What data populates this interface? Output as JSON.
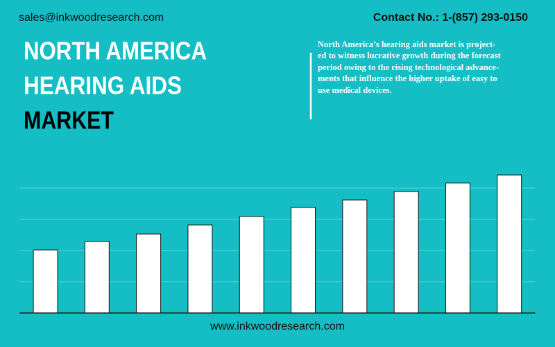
{
  "header": {
    "email": "sales@inkwoodresearch.com",
    "contact": "Contact No.: 1-(857) 293-0150"
  },
  "title_lines": [
    "NORTH AMERICA",
    "HEARING AIDS",
    "MARKET"
  ],
  "description_lines": [
    "North America’s hearing aids market is project-",
    "ed to witness lucrative growth during the forecast",
    "period owing to the rising technological advance-",
    "ments that influence the higher uptake of easy to",
    "use medical devices."
  ],
  "footer": {
    "website": "www.inkwoodresearch.com"
  },
  "chart_data": {
    "type": "bar",
    "categories": [
      null,
      null,
      null,
      null,
      null,
      null,
      null,
      null,
      null,
      null
    ],
    "values": [
      2.02,
      2.29,
      2.53,
      2.82,
      3.09,
      3.38,
      3.62,
      3.89,
      4.16,
      4.42
    ],
    "color": "#ffffff",
    "ylim": [
      0,
      5
    ],
    "yticks": [
      1,
      2,
      3,
      4
    ],
    "grid": true
  }
}
